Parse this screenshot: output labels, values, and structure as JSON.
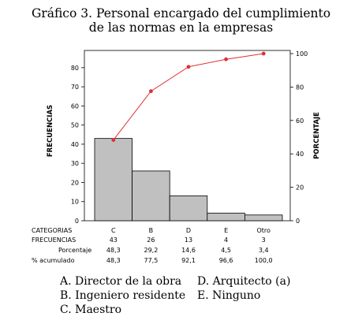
{
  "title_line1": "Gráfico 3. Personal encargado del cumplimiento",
  "title_line2": "de las normas en la empresas",
  "chart_data": {
    "type": "bar",
    "subtype": "pareto",
    "categories": [
      "C",
      "B",
      "D",
      "E",
      "Otro"
    ],
    "frequencies": [
      43,
      26,
      13,
      4,
      3
    ],
    "percentages": [
      "48,3",
      "29,2",
      "14,6",
      "4,5",
      "3,4"
    ],
    "cumulative": [
      "48,3",
      "77,5",
      "92,1",
      "96,6",
      "100,0"
    ],
    "cumulative_values": [
      48.3,
      77.5,
      92.1,
      96.6,
      100.0
    ],
    "ylabel_left": "FRECUENCIAS",
    "ylabel_right": "PORCENTAJE",
    "ylim_left": [
      0,
      89
    ],
    "yticks_left": [
      0,
      10,
      20,
      30,
      40,
      50,
      60,
      70,
      80,
      90
    ],
    "ylim_right": [
      0,
      100
    ],
    "yticks_right": [
      0,
      20,
      40,
      60,
      80,
      100
    ],
    "grid": false,
    "bar_color": "#c0c0c0",
    "line_color": "#e03030",
    "row_labels": {
      "categories": "CATEGORIAS",
      "frequencies": "FRECUENCIAS",
      "percent": "Porcentaje",
      "cumulative": "% acumulado"
    }
  },
  "legend": {
    "left": [
      "A. Director de la obra",
      "B. Ingeniero residente",
      "C. Maestro"
    ],
    "right": [
      "D. Arquitecto (a)",
      "E. Ninguno"
    ]
  }
}
